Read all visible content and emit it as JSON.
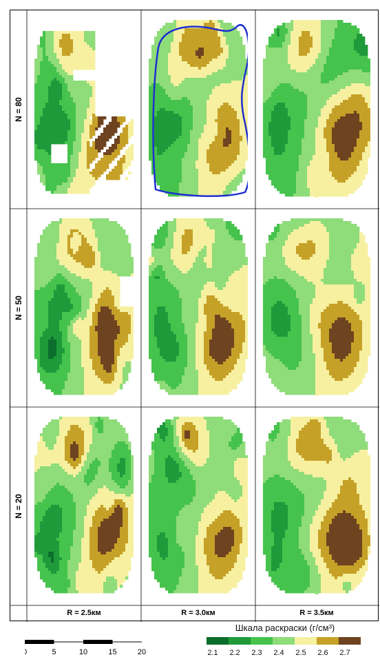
{
  "rows": [
    {
      "label": "N = 80",
      "key": "n80"
    },
    {
      "label": "N = 50",
      "key": "n50"
    },
    {
      "label": "N = 20",
      "key": "n20"
    }
  ],
  "columns": [
    {
      "label": "R = 2.5км",
      "key": "r25"
    },
    {
      "label": "R = 3.0км",
      "key": "r30"
    },
    {
      "label": "R = 3.5км",
      "key": "r35"
    }
  ],
  "highlighted_panel": {
    "row": "N = 80",
    "column": "R = 3.0км",
    "outline_color": "#1f2fd0"
  },
  "scale_bar": {
    "ticks": [
      "0",
      "5",
      "10",
      "15",
      "20"
    ]
  },
  "legend": {
    "title": "Шкала раскраски (г/см³)",
    "levels": [
      {
        "value": "2.1",
        "color": "#0c6e2c"
      },
      {
        "value": "2.2",
        "color": "#1f9a3a"
      },
      {
        "value": "2.3",
        "color": "#46c34d"
      },
      {
        "value": "2.4",
        "color": "#8fdc7a"
      },
      {
        "value": "2.5",
        "color": "#f6f0a0"
      },
      {
        "value": "2.6",
        "color": "#c6a128"
      },
      {
        "value": "2.7",
        "color": "#6e4320"
      }
    ]
  }
}
